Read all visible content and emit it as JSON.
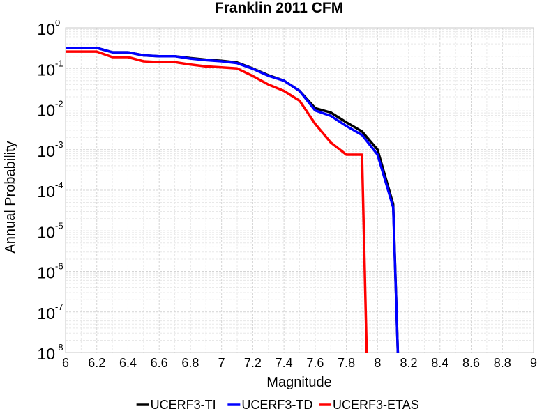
{
  "chart_data": {
    "type": "line",
    "title": "Franklin 2011 CFM",
    "xlabel": "Magnitude",
    "ylabel": "Annual Probability",
    "xlim": [
      6,
      9
    ],
    "ylim": [
      1e-08,
      1
    ],
    "yscale": "log",
    "grid": true,
    "legend_position": "bottom",
    "xticks": [
      "6",
      "6.2",
      "6.4",
      "6.6",
      "6.8",
      "7",
      "7.2",
      "7.4",
      "7.6",
      "7.8",
      "8",
      "8.2",
      "8.4",
      "8.6",
      "8.8",
      "9"
    ],
    "yticks": [
      {
        "base": "10",
        "exp": "0"
      },
      {
        "base": "10",
        "exp": "-1"
      },
      {
        "base": "10",
        "exp": "-2"
      },
      {
        "base": "10",
        "exp": "-3"
      },
      {
        "base": "10",
        "exp": "-4"
      },
      {
        "base": "10",
        "exp": "-5"
      },
      {
        "base": "10",
        "exp": "-6"
      },
      {
        "base": "10",
        "exp": "-7"
      },
      {
        "base": "10",
        "exp": "-8"
      }
    ],
    "series": [
      {
        "name": "UCERF3-TI",
        "color": "#000000",
        "x": [
          6.0,
          6.1,
          6.2,
          6.3,
          6.4,
          6.5,
          6.6,
          6.7,
          6.8,
          6.9,
          7.0,
          7.1,
          7.2,
          7.3,
          7.4,
          7.5,
          7.6,
          7.7,
          7.8,
          7.9,
          8.0,
          8.1,
          8.13
        ],
        "y": [
          0.32,
          0.32,
          0.32,
          0.25,
          0.25,
          0.21,
          0.2,
          0.2,
          0.18,
          0.165,
          0.155,
          0.14,
          0.1,
          0.068,
          0.05,
          0.028,
          0.0105,
          0.0082,
          0.0047,
          0.0028,
          0.001,
          4.5e-05,
          1e-08
        ]
      },
      {
        "name": "UCERF3-TD",
        "color": "#0000ff",
        "x": [
          6.0,
          6.1,
          6.2,
          6.3,
          6.4,
          6.5,
          6.6,
          6.7,
          6.8,
          6.9,
          7.0,
          7.1,
          7.2,
          7.3,
          7.4,
          7.5,
          7.6,
          7.7,
          7.8,
          7.9,
          8.0,
          8.1,
          8.13
        ],
        "y": [
          0.32,
          0.32,
          0.32,
          0.25,
          0.25,
          0.21,
          0.2,
          0.2,
          0.175,
          0.16,
          0.15,
          0.135,
          0.098,
          0.066,
          0.05,
          0.028,
          0.0092,
          0.0068,
          0.0038,
          0.0023,
          0.00075,
          3.8e-05,
          1e-08
        ]
      },
      {
        "name": "UCERF3-ETAS",
        "color": "#ff0000",
        "x": [
          6.0,
          6.1,
          6.2,
          6.3,
          6.4,
          6.5,
          6.6,
          6.7,
          6.8,
          6.9,
          7.0,
          7.1,
          7.2,
          7.3,
          7.4,
          7.5,
          7.6,
          7.7,
          7.8,
          7.9,
          7.93
        ],
        "y": [
          0.26,
          0.26,
          0.26,
          0.19,
          0.19,
          0.15,
          0.143,
          0.143,
          0.125,
          0.112,
          0.106,
          0.1,
          0.065,
          0.04,
          0.028,
          0.016,
          0.0043,
          0.0015,
          0.00075,
          0.00075,
          1e-08
        ]
      }
    ]
  }
}
